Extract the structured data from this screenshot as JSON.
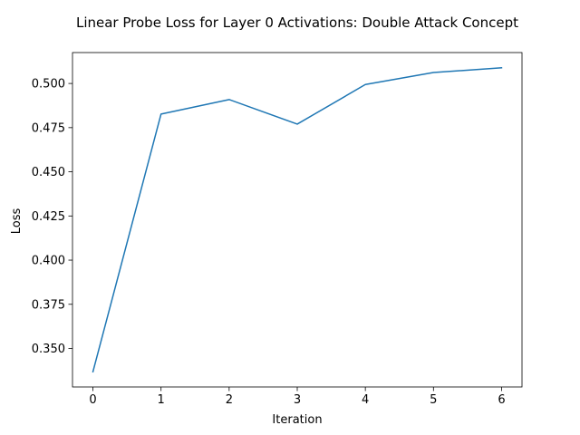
{
  "chart_data": {
    "type": "line",
    "title": "Linear Probe Loss for Layer 0 Activations: Double Attack Concept",
    "xlabel": "Iteration",
    "ylabel": "Loss",
    "x": [
      0,
      1,
      2,
      3,
      4,
      5,
      6
    ],
    "series": [
      {
        "values": [
          0.3368,
          0.4827,
          0.4909,
          0.477,
          0.4994,
          0.5062,
          0.5089
        ],
        "color": "#1f77b4"
      }
    ],
    "xlim": [
      -0.3,
      6.3
    ],
    "ylim": [
      0.3282,
      0.5175
    ],
    "xticks": [
      0,
      1,
      2,
      3,
      4,
      5,
      6
    ],
    "xtick_labels": [
      "0",
      "1",
      "2",
      "3",
      "4",
      "5",
      "6"
    ],
    "yticks": [
      0.35,
      0.375,
      0.4,
      0.425,
      0.45,
      0.475,
      0.5
    ],
    "ytick_labels": [
      "0.350",
      "0.375",
      "0.400",
      "0.425",
      "0.450",
      "0.475",
      "0.500"
    ],
    "grid": false,
    "legend": "none"
  }
}
